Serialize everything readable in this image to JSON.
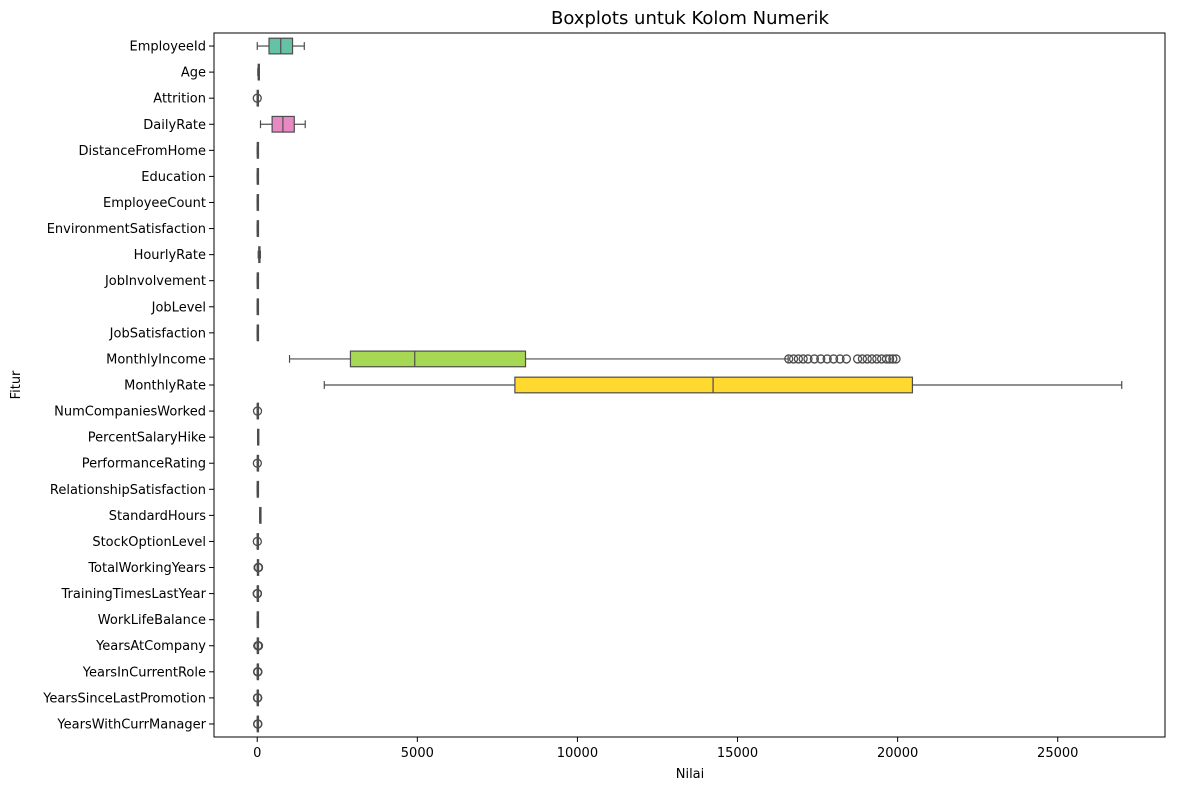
{
  "chart_data": {
    "type": "boxplot",
    "orientation": "horizontal",
    "title": "Boxplots untuk Kolom Numerik",
    "xlabel": "Nilai",
    "ylabel": "Fitur",
    "xlim": [
      -1350,
      28350
    ],
    "xticks": [
      0,
      5000,
      10000,
      15000,
      20000,
      25000
    ],
    "xtick_labels": [
      "0",
      "5000",
      "10000",
      "15000",
      "20000",
      "25000"
    ],
    "grid": false,
    "palette": [
      "#66c2a5",
      "#fc8d62",
      "#8da0cb",
      "#e78ac3",
      "#a6d854",
      "#ffd92f",
      "#e5c494",
      "#b3b3b3"
    ],
    "outline_color": "#4d4d4d",
    "series": [
      {
        "name": "EmployeeId",
        "min": 1,
        "q1": 368,
        "median": 735,
        "q3": 1103,
        "max": 1470,
        "outliers": []
      },
      {
        "name": "Age",
        "min": 18,
        "q1": 30,
        "median": 36,
        "q3": 43,
        "max": 60,
        "outliers": []
      },
      {
        "name": "Attrition",
        "min": 0,
        "q1": 0,
        "median": 0,
        "q3": 0,
        "max": 0,
        "outliers": [
          1
        ]
      },
      {
        "name": "DailyRate",
        "min": 102,
        "q1": 465,
        "median": 802,
        "q3": 1157,
        "max": 1499,
        "outliers": []
      },
      {
        "name": "DistanceFromHome",
        "min": 1,
        "q1": 2,
        "median": 7,
        "q3": 14,
        "max": 29,
        "outliers": []
      },
      {
        "name": "Education",
        "min": 1,
        "q1": 2,
        "median": 3,
        "q3": 4,
        "max": 5,
        "outliers": []
      },
      {
        "name": "EmployeeCount",
        "min": 1,
        "q1": 1,
        "median": 1,
        "q3": 1,
        "max": 1,
        "outliers": []
      },
      {
        "name": "EnvironmentSatisfaction",
        "min": 1,
        "q1": 2,
        "median": 3,
        "q3": 4,
        "max": 4,
        "outliers": []
      },
      {
        "name": "HourlyRate",
        "min": 30,
        "q1": 48,
        "median": 66,
        "q3": 84,
        "max": 100,
        "outliers": []
      },
      {
        "name": "JobInvolvement",
        "min": 1,
        "q1": 2,
        "median": 3,
        "q3": 3,
        "max": 4,
        "outliers": []
      },
      {
        "name": "JobLevel",
        "min": 1,
        "q1": 1,
        "median": 2,
        "q3": 3,
        "max": 5,
        "outliers": []
      },
      {
        "name": "JobSatisfaction",
        "min": 1,
        "q1": 2,
        "median": 3,
        "q3": 4,
        "max": 4,
        "outliers": []
      },
      {
        "name": "MonthlyIncome",
        "min": 1009,
        "q1": 2911,
        "median": 4919,
        "q3": 8379,
        "max": 16581,
        "outliers": [
          16600,
          16750,
          16900,
          17050,
          17200,
          17400,
          17600,
          17800,
          18000,
          18200,
          18400,
          18750,
          18900,
          19050,
          19200,
          19350,
          19500,
          19650,
          19750,
          19850,
          19950
        ]
      },
      {
        "name": "MonthlyRate",
        "min": 2094,
        "q1": 8047,
        "median": 14236,
        "q3": 20462,
        "max": 26999,
        "outliers": []
      },
      {
        "name": "NumCompaniesWorked",
        "min": 0,
        "q1": 1,
        "median": 2,
        "q3": 4,
        "max": 8,
        "outliers": [
          9
        ]
      },
      {
        "name": "PercentSalaryHike",
        "min": 11,
        "q1": 12,
        "median": 14,
        "q3": 18,
        "max": 25,
        "outliers": []
      },
      {
        "name": "PerformanceRating",
        "min": 3,
        "q1": 3,
        "median": 3,
        "q3": 3,
        "max": 3,
        "outliers": [
          4
        ]
      },
      {
        "name": "RelationshipSatisfaction",
        "min": 1,
        "q1": 2,
        "median": 3,
        "q3": 4,
        "max": 4,
        "outliers": []
      },
      {
        "name": "StandardHours",
        "min": 80,
        "q1": 80,
        "median": 80,
        "q3": 80,
        "max": 80,
        "outliers": []
      },
      {
        "name": "StockOptionLevel",
        "min": 0,
        "q1": 0,
        "median": 1,
        "q3": 1,
        "max": 2,
        "outliers": [
          3
        ]
      },
      {
        "name": "TotalWorkingYears",
        "min": 0,
        "q1": 6,
        "median": 10,
        "q3": 15,
        "max": 28,
        "outliers": [
          29,
          31,
          33,
          35,
          37,
          40
        ]
      },
      {
        "name": "TrainingTimesLastYear",
        "min": 1,
        "q1": 2,
        "median": 3,
        "q3": 3,
        "max": 4,
        "outliers": [
          0,
          5,
          6
        ]
      },
      {
        "name": "WorkLifeBalance",
        "min": 1,
        "q1": 2,
        "median": 3,
        "q3": 3,
        "max": 4,
        "outliers": []
      },
      {
        "name": "YearsAtCompany",
        "min": 0,
        "q1": 3,
        "median": 5,
        "q3": 9,
        "max": 18,
        "outliers": [
          19,
          21,
          24,
          27,
          30,
          33,
          36,
          40
        ]
      },
      {
        "name": "YearsInCurrentRole",
        "min": 0,
        "q1": 2,
        "median": 3,
        "q3": 7,
        "max": 14,
        "outliers": [
          15,
          16,
          17,
          18
        ]
      },
      {
        "name": "YearsSinceLastPromotion",
        "min": 0,
        "q1": 0,
        "median": 1,
        "q3": 3,
        "max": 7,
        "outliers": [
          8,
          10,
          12,
          15
        ]
      },
      {
        "name": "YearsWithCurrManager",
        "min": 0,
        "q1": 2,
        "median": 3,
        "q3": 7,
        "max": 14,
        "outliers": [
          15,
          16,
          17
        ]
      }
    ]
  }
}
